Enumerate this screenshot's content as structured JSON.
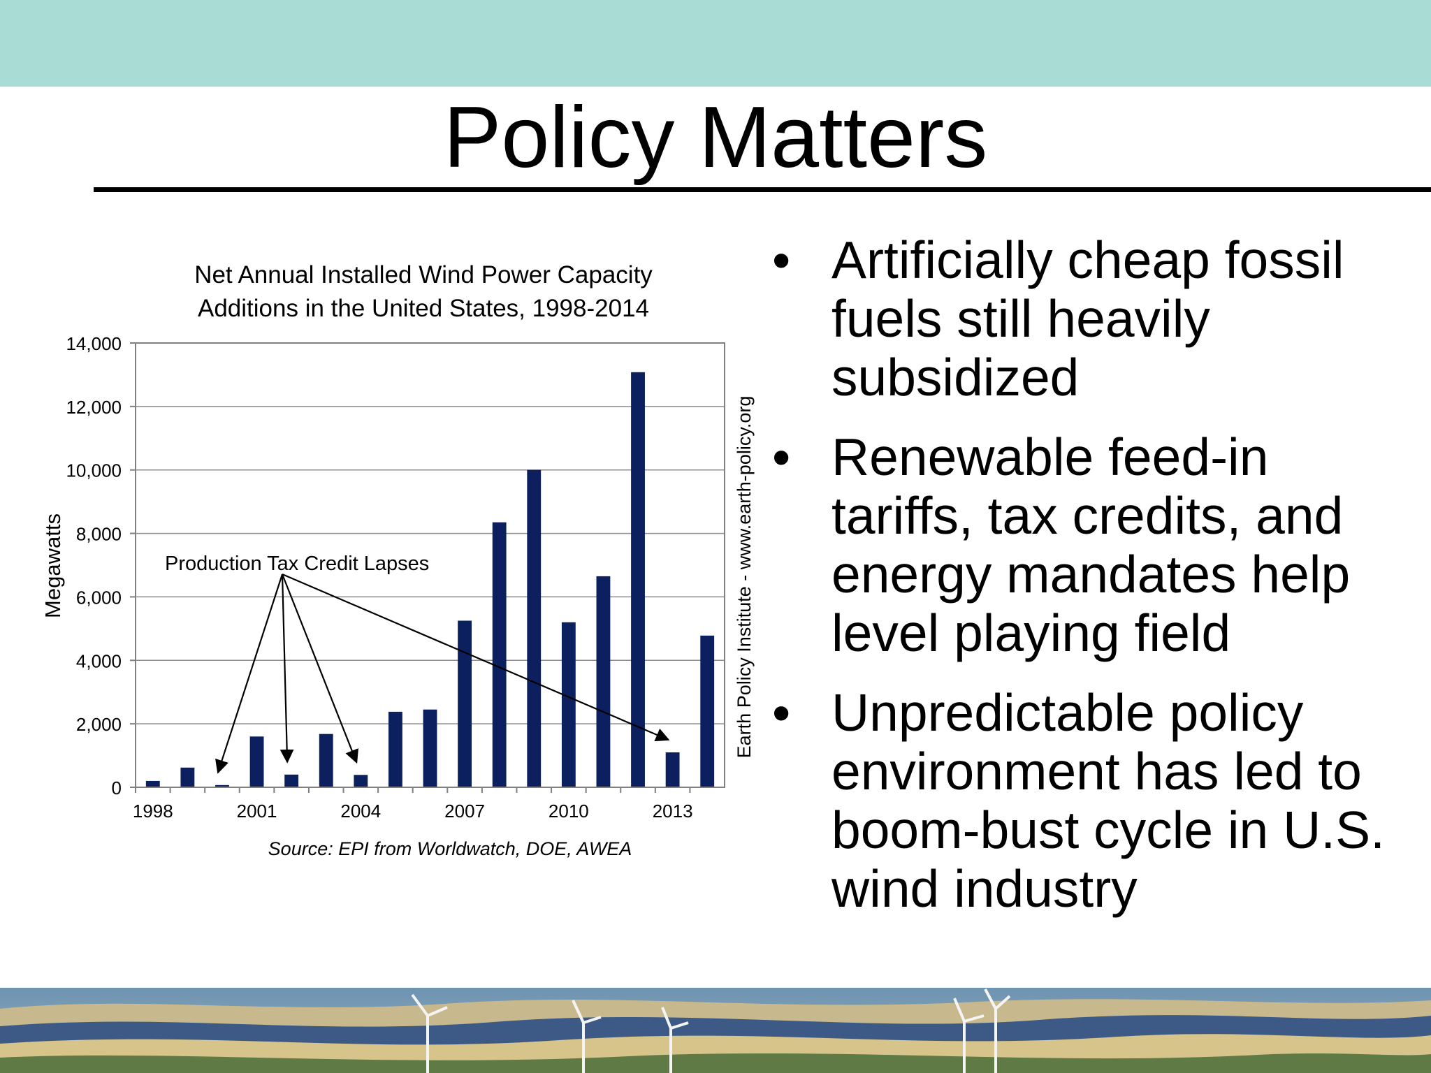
{
  "slide": {
    "title": "Policy Matters",
    "bullet_glyph": "•",
    "bullets": [
      "Artificially cheap fossil fuels still heavily subsidized",
      "Renewable feed-in tariffs, tax credits, and energy mandates help level playing field",
      "Unpredictable policy environment has led to boom-bust cycle in U.S. wind industry"
    ],
    "colors": {
      "top_band": "#aadcd6",
      "bar": "#0c1f5e",
      "background_photo": "landscape-with-wind-turbines"
    }
  },
  "chart_data": {
    "type": "bar",
    "title_lines": [
      "Net Annual Installed Wind Power Capacity",
      "Additions in the United States, 1998-2014"
    ],
    "ylabel": "Megawatts",
    "xlabel": "",
    "ylim": [
      0,
      14000
    ],
    "yticks": [
      0,
      2000,
      4000,
      6000,
      8000,
      10000,
      12000,
      14000
    ],
    "ytick_labels": [
      "0",
      "2,000",
      "4,000",
      "6,000",
      "8,000",
      "10,000",
      "12,000",
      "14,000"
    ],
    "categories": [
      "1998",
      "1999",
      "2000",
      "2001",
      "2002",
      "2003",
      "2004",
      "2005",
      "2006",
      "2007",
      "2008",
      "2009",
      "2010",
      "2011",
      "2012",
      "2013",
      "2014"
    ],
    "xtick_labels": [
      "1998",
      "2001",
      "2004",
      "2007",
      "2010",
      "2013"
    ],
    "values": [
      200,
      620,
      70,
      1600,
      400,
      1680,
      390,
      2380,
      2450,
      5250,
      8350,
      10000,
      5200,
      6650,
      13080,
      1100,
      4780
    ],
    "grid": true,
    "annotation": {
      "text": "Production Tax Credit Lapses",
      "points_to": [
        "2000",
        "2002",
        "2004",
        "2013"
      ]
    },
    "source": "Source: EPI from Worldwatch, DOE, AWEA",
    "side_label": "Earth Policy Institute - www.earth-policy.org"
  }
}
